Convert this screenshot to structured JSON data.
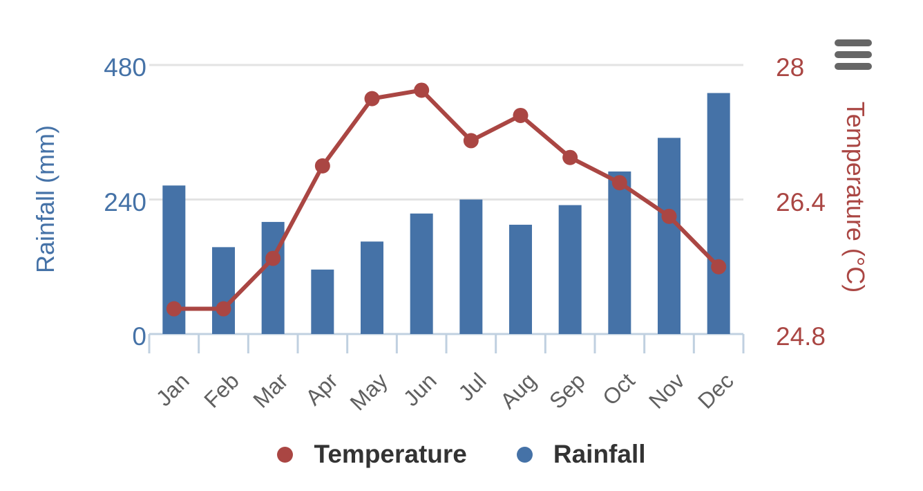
{
  "chart": {
    "title": "",
    "export_menu_icon": "hamburger-menu-icon"
  },
  "chart_data": {
    "type": "bar+line combo, dual y-axes",
    "categories": [
      "Jan",
      "Feb",
      "Mar",
      "Apr",
      "May",
      "Jun",
      "Jul",
      "Aug",
      "Sep",
      "Oct",
      "Nov",
      "Dec"
    ],
    "series": [
      {
        "name": "Temperature",
        "type": "line",
        "y_axis": "right",
        "unit": "°C",
        "color": "#AA4643",
        "values": [
          25.1,
          25.1,
          25.7,
          26.8,
          27.6,
          27.7,
          27.1,
          27.4,
          26.9,
          26.6,
          26.2,
          25.6
        ]
      },
      {
        "name": "Rainfall",
        "type": "column",
        "y_axis": "left",
        "unit": "mm",
        "color": "#4572A7",
        "values": [
          265,
          155,
          200,
          115,
          165,
          215,
          240,
          195,
          230,
          290,
          350,
          430
        ]
      }
    ],
    "y_axis_left": {
      "title": "Rainfall (mm)",
      "min": 0,
      "max": 480,
      "ticks": [
        0,
        240,
        480
      ],
      "color": "#4572A7"
    },
    "y_axis_right": {
      "title": "Temperature (°C)",
      "min": 24.8,
      "max": 28,
      "ticks": [
        24.8,
        26.4,
        28
      ],
      "color": "#AA4643"
    },
    "legend": {
      "position": "bottom",
      "items": [
        "Temperature",
        "Rainfall"
      ]
    },
    "grid": true,
    "xlabel": "",
    "ylabel_left": "Rainfall (mm)",
    "ylabel_right": "Temperature (°C)"
  }
}
